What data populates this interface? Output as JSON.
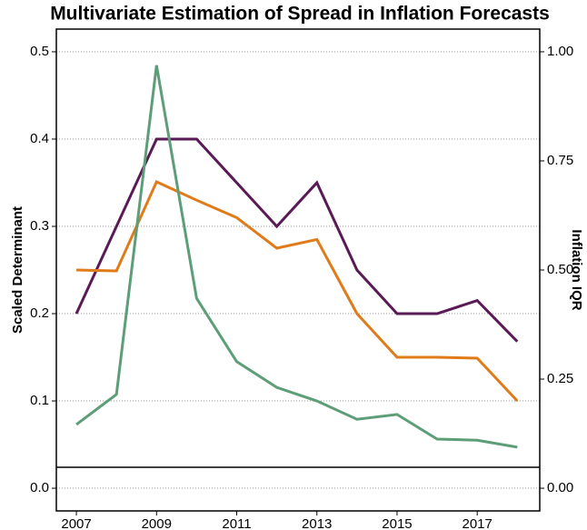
{
  "chart_data": {
    "type": "line",
    "title": "Multivariate Estimation of Spread in Inflation Forecasts",
    "ylabel": "Scaled Determinant",
    "y2label": "Inflation IQR",
    "x": [
      2007,
      2008,
      2009,
      2010,
      2011,
      2012,
      2013,
      2014,
      2015,
      2016,
      2017,
      2018
    ],
    "xlim": [
      2006.5,
      2018.56
    ],
    "xticks": [
      2007,
      2009,
      2011,
      2013,
      2015,
      2017
    ],
    "ylim": [
      -0.026,
      0.526
    ],
    "yticks": [
      {
        "value": 0,
        "label": "0.0"
      },
      0.1,
      0.2,
      0.3,
      0.4,
      0.5
    ],
    "y2lim": [
      -0.052,
      1.052
    ],
    "y2ticks": [
      {
        "value": 0,
        "label": "0.00"
      },
      {
        "value": 0.25,
        "label": "0.25"
      },
      {
        "value": 0.5,
        "label": "0.50"
      },
      {
        "value": 0.75,
        "label": "0.75"
      },
      {
        "value": 1,
        "label": "1.00"
      }
    ],
    "grid": true,
    "hline": 0.024,
    "series": [
      {
        "color": "#5a1a55",
        "values": [
          0.2,
          0.3,
          0.4,
          0.4,
          0.35,
          0.3,
          0.35,
          0.25,
          0.2,
          0.2,
          0.215,
          0.168
        ]
      },
      {
        "color": "#e07b1a",
        "values": [
          0.25,
          0.249,
          0.351,
          0.33,
          0.31,
          0.275,
          0.285,
          0.2,
          0.15,
          0.15,
          0.149,
          0.1
        ]
      },
      {
        "color": "#5d9e78",
        "axis": "y2",
        "values": [
          0.146,
          0.215,
          0.969,
          0.435,
          0.29,
          0.231,
          0.2,
          0.158,
          0.169,
          0.1125,
          0.11,
          0.094
        ]
      }
    ]
  }
}
